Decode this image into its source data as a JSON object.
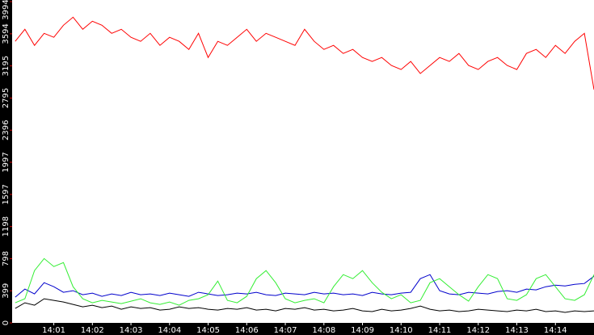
{
  "chart_data": {
    "type": "line",
    "x": [
      0,
      0.25,
      0.5,
      0.75,
      1,
      1.25,
      1.5,
      1.75,
      2,
      2.25,
      2.5,
      2.75,
      3,
      3.25,
      3.5,
      3.75,
      4,
      4.25,
      4.5,
      4.75,
      5,
      5.25,
      5.5,
      5.75,
      6,
      6.25,
      6.5,
      6.75,
      7,
      7.25,
      7.5,
      7.75,
      8,
      8.25,
      8.5,
      8.75,
      9,
      9.25,
      9.5,
      9.75,
      10,
      10.25,
      10.5,
      10.75,
      11,
      11.25,
      11.5,
      11.75,
      12,
      12.25,
      12.5,
      12.75,
      13,
      13.25,
      13.5,
      13.75,
      14,
      14.25,
      14.5,
      14.75,
      15
    ],
    "xlim": [
      -0.08,
      15
    ],
    "xticks": [
      {
        "value": 1,
        "label": "14:01"
      },
      {
        "value": 2,
        "label": "14:02"
      },
      {
        "value": 3,
        "label": "14:03"
      },
      {
        "value": 4,
        "label": "14:04"
      },
      {
        "value": 5,
        "label": "14:05"
      },
      {
        "value": 6,
        "label": "14:06"
      },
      {
        "value": 7,
        "label": "14:07"
      },
      {
        "value": 8,
        "label": "14:08"
      },
      {
        "value": 9,
        "label": "14:09"
      },
      {
        "value": 10,
        "label": "14:10"
      },
      {
        "value": 11,
        "label": "14:11"
      },
      {
        "value": 12,
        "label": "14:12"
      },
      {
        "value": 13,
        "label": "14:13"
      },
      {
        "value": 14,
        "label": "14:14"
      }
    ],
    "ylim": [
      0,
      3994
    ],
    "yticks": [
      0,
      399,
      798,
      1198,
      1597,
      1997,
      2396,
      2795,
      3195,
      3594,
      3994
    ],
    "series": [
      {
        "color": "#ff0000",
        "values": [
          3500,
          3650,
          3450,
          3600,
          3550,
          3700,
          3800,
          3650,
          3750,
          3700,
          3600,
          3650,
          3550,
          3500,
          3600,
          3450,
          3550,
          3500,
          3400,
          3600,
          3300,
          3500,
          3450,
          3550,
          3650,
          3500,
          3600,
          3550,
          3500,
          3450,
          3650,
          3500,
          3400,
          3450,
          3350,
          3400,
          3300,
          3250,
          3300,
          3200,
          3150,
          3250,
          3100,
          3200,
          3300,
          3250,
          3350,
          3200,
          3150,
          3250,
          3300,
          3200,
          3150,
          3350,
          3400,
          3300,
          3450,
          3350,
          3500,
          3600,
          2900
        ]
      },
      {
        "color": "#0000cc",
        "values": [
          320,
          420,
          360,
          500,
          450,
          380,
          400,
          350,
          370,
          330,
          360,
          340,
          380,
          350,
          360,
          340,
          370,
          350,
          330,
          380,
          360,
          340,
          350,
          370,
          360,
          380,
          350,
          340,
          370,
          360,
          350,
          380,
          360,
          370,
          350,
          360,
          340,
          380,
          360,
          350,
          370,
          380,
          550,
          600,
          400,
          360,
          350,
          380,
          370,
          360,
          390,
          400,
          380,
          420,
          410,
          450,
          470,
          460,
          480,
          490,
          580
        ]
      },
      {
        "color": "#33ee33",
        "values": [
          250,
          300,
          650,
          800,
          700,
          750,
          450,
          300,
          250,
          280,
          260,
          240,
          270,
          300,
          250,
          230,
          260,
          220,
          280,
          300,
          350,
          520,
          280,
          250,
          330,
          550,
          650,
          500,
          300,
          250,
          280,
          300,
          250,
          450,
          600,
          550,
          650,
          500,
          380,
          300,
          350,
          250,
          280,
          500,
          550,
          450,
          350,
          270,
          450,
          600,
          550,
          300,
          280,
          350,
          550,
          600,
          450,
          300,
          280,
          350,
          600
        ]
      },
      {
        "color": "#000000",
        "values": [
          180,
          250,
          220,
          300,
          280,
          260,
          230,
          200,
          220,
          190,
          210,
          170,
          200,
          180,
          190,
          160,
          170,
          200,
          180,
          190,
          170,
          160,
          180,
          170,
          190,
          160,
          170,
          150,
          180,
          170,
          190,
          160,
          170,
          150,
          160,
          180,
          150,
          140,
          170,
          150,
          160,
          180,
          210,
          170,
          150,
          160,
          140,
          150,
          170,
          160,
          150,
          140,
          160,
          150,
          170,
          140,
          150,
          130,
          150,
          140,
          150
        ]
      }
    ]
  }
}
